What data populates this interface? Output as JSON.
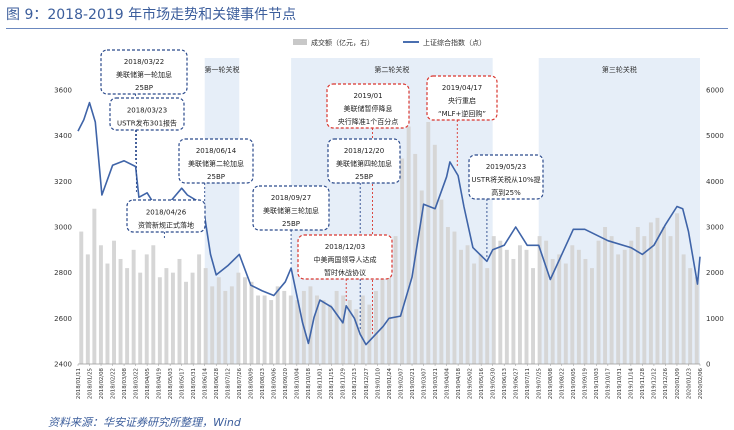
{
  "title": "图 9：2018-2019 年市场走势和关键事件节点",
  "source": "资料来源：华安证券研究所整理，Wind",
  "chart_data": {
    "type": "line",
    "legend": {
      "placement": "top-center",
      "items": [
        {
          "label": "成交额（亿元，右）",
          "kind": "bar",
          "color": "#c8c8c8"
        },
        {
          "label": "上证综合指数（点）",
          "kind": "line",
          "color": "#4a6fb0"
        }
      ]
    },
    "y_left": {
      "range": [
        2400,
        3600
      ],
      "ticks": [
        2400,
        2600,
        2800,
        3000,
        3200,
        3400,
        3600
      ]
    },
    "y_right": {
      "range": [
        0,
        6000
      ],
      "ticks": [
        0,
        1000,
        2000,
        3000,
        4000,
        5000,
        6000
      ]
    },
    "x": {
      "range": [
        "2018/01/11",
        "2020/02/06"
      ],
      "tick_labels": [
        "2018/01/11",
        "2018/01/25",
        "2018/02/08",
        "2018/02/22",
        "2018/03/08",
        "2018/03/22",
        "2018/04/05",
        "2018/04/19",
        "2018/05/03",
        "2018/05/17",
        "2018/05/31",
        "2018/06/14",
        "2018/06/28",
        "2018/07/12",
        "2018/07/26",
        "2018/08/09",
        "2018/08/23",
        "2018/09/06",
        "2018/09/20",
        "2018/10/04",
        "2018/10/18",
        "2018/11/01",
        "2018/11/15",
        "2018/11/29",
        "2018/12/13",
        "2018/12/27",
        "2019/01/10",
        "2019/01/24",
        "2019/02/07",
        "2019/02/21",
        "2019/03/07",
        "2019/03/21",
        "2019/04/04",
        "2019/04/18",
        "2019/05/02",
        "2019/05/16",
        "2019/05/30",
        "2019/06/13",
        "2019/06/27",
        "2019/07/11",
        "2019/07/25",
        "2019/08/08",
        "2019/08/22",
        "2019/09/05",
        "2019/09/19",
        "2019/10/03",
        "2019/10/17",
        "2019/10/31",
        "2019/11/14",
        "2019/11/28",
        "2019/12/12",
        "2019/12/26",
        "2020/01/09",
        "2020/01/23",
        "2020/02/06"
      ]
    },
    "bands": [
      {
        "label": "第一轮关税",
        "start": "2018/06/14",
        "end": "2018/07/26"
      },
      {
        "label": "第二轮关税",
        "start": "2018/09/27",
        "end": "2019/05/30"
      },
      {
        "label": "第三轮关税",
        "start": "2019/07/25",
        "end": "2020/02/06"
      }
    ],
    "index_series": {
      "name": "上证综合指数（点）",
      "points": [
        [
          "2018/01/11",
          3420
        ],
        [
          "2018/01/18",
          3470
        ],
        [
          "2018/01/25",
          3545
        ],
        [
          "2018/02/01",
          3460
        ],
        [
          "2018/02/09",
          3140
        ],
        [
          "2018/02/22",
          3270
        ],
        [
          "2018/03/08",
          3290
        ],
        [
          "2018/03/22",
          3265
        ],
        [
          "2018/03/26",
          3130
        ],
        [
          "2018/04/05",
          3150
        ],
        [
          "2018/04/19",
          3070
        ],
        [
          "2018/05/03",
          3110
        ],
        [
          "2018/05/17",
          3170
        ],
        [
          "2018/05/24",
          3140
        ],
        [
          "2018/06/07",
          3110
        ],
        [
          "2018/06/14",
          3045
        ],
        [
          "2018/06/21",
          2880
        ],
        [
          "2018/06/28",
          2790
        ],
        [
          "2018/07/12",
          2830
        ],
        [
          "2018/07/26",
          2880
        ],
        [
          "2018/08/09",
          2745
        ],
        [
          "2018/08/23",
          2720
        ],
        [
          "2018/09/06",
          2700
        ],
        [
          "2018/09/20",
          2760
        ],
        [
          "2018/09/27",
          2820
        ],
        [
          "2018/10/11",
          2580
        ],
        [
          "2018/10/18",
          2490
        ],
        [
          "2018/10/25",
          2605
        ],
        [
          "2018/11/01",
          2680
        ],
        [
          "2018/11/15",
          2650
        ],
        [
          "2018/11/29",
          2580
        ],
        [
          "2018/12/03",
          2655
        ],
        [
          "2018/12/13",
          2600
        ],
        [
          "2018/12/20",
          2530
        ],
        [
          "2018/12/27",
          2485
        ],
        [
          "2019/01/04",
          2515
        ],
        [
          "2019/01/17",
          2565
        ],
        [
          "2019/01/24",
          2600
        ],
        [
          "2019/02/07",
          2610
        ],
        [
          "2019/02/21",
          2780
        ],
        [
          "2019/03/07",
          3100
        ],
        [
          "2019/03/21",
          3080
        ],
        [
          "2019/04/04",
          3220
        ],
        [
          "2019/04/08",
          3285
        ],
        [
          "2019/04/18",
          3225
        ],
        [
          "2019/04/25",
          3090
        ],
        [
          "2019/05/06",
          2910
        ],
        [
          "2019/05/23",
          2850
        ],
        [
          "2019/05/30",
          2900
        ],
        [
          "2019/06/13",
          2920
        ],
        [
          "2019/06/27",
          3000
        ],
        [
          "2019/07/11",
          2920
        ],
        [
          "2019/07/25",
          2920
        ],
        [
          "2019/08/08",
          2770
        ],
        [
          "2019/08/22",
          2880
        ],
        [
          "2019/09/05",
          2990
        ],
        [
          "2019/09/19",
          2990
        ],
        [
          "2019/10/17",
          2940
        ],
        [
          "2019/11/14",
          2910
        ],
        [
          "2019/11/28",
          2880
        ],
        [
          "2019/12/12",
          2920
        ],
        [
          "2019/12/26",
          3010
        ],
        [
          "2020/01/09",
          3090
        ],
        [
          "2020/01/16",
          3080
        ],
        [
          "2020/01/23",
          2980
        ],
        [
          "2020/02/03",
          2750
        ],
        [
          "2020/02/06",
          2870
        ]
      ]
    },
    "turnover_series": {
      "name": "成交额（亿元，右）",
      "values": [
        2900,
        2400,
        3400,
        2600,
        2200,
        2700,
        2300,
        2100,
        2500,
        2000,
        2400,
        2600,
        1900,
        2100,
        2000,
        2300,
        1800,
        2000,
        2400,
        2100,
        1700,
        1900,
        1600,
        1700,
        2000,
        1900,
        1800,
        1500,
        1500,
        1400,
        1700,
        1600,
        1500,
        1400,
        1600,
        1700,
        1500,
        1400,
        1300,
        1600,
        1500,
        1400,
        1200,
        1500,
        1300,
        1600,
        1900,
        2300,
        2800,
        4500,
        5200,
        4600,
        3800,
        5300,
        4800,
        3600,
        3000,
        2900,
        2500,
        2600,
        2200,
        2400,
        2100,
        2800,
        2700,
        2500,
        2300,
        2600,
        2500,
        2100,
        2800,
        2700,
        2300,
        2400,
        2200,
        2600,
        2500,
        2300,
        2100,
        2700,
        3000,
        2800,
        2400,
        2500,
        2700,
        3000,
        2800,
        3100,
        3200,
        3000,
        2800,
        3300,
        2400,
        2100,
        1900
      ]
    },
    "annotations": [
      {
        "lines": [
          "2018/03/22",
          "美联储第一轮加息",
          "25BP"
        ],
        "border": "#2b4a8c",
        "date": "2018/03/22",
        "value": 3265
      },
      {
        "lines": [
          "2018/03/23",
          "USTR发布301报告"
        ],
        "border": "#2b4a8c",
        "date": "2018/03/23",
        "value": 3130
      },
      {
        "lines": [
          "2018/06/14",
          "美联储第二轮加息",
          "25BP"
        ],
        "border": "#2b4a8c",
        "date": "2018/06/14",
        "value": 3045
      },
      {
        "lines": [
          "2018/04/26",
          "资管新规正式落地"
        ],
        "border": "#2b4a8c",
        "date": "2018/04/26",
        "value": 3070
      },
      {
        "lines": [
          "2018/09/27",
          "美联储第三轮加息",
          "25BP"
        ],
        "border": "#2b4a8c",
        "date": "2018/09/27",
        "value": 2820
      },
      {
        "lines": [
          "2019/01",
          "美联储暂停降息",
          "央行降准1个百分点"
        ],
        "border": "#d9362f",
        "date": "2019/01/04",
        "value": 2515
      },
      {
        "lines": [
          "2018/12/20",
          "美联储第四轮加息",
          "25BP"
        ],
        "border": "#2b4a8c",
        "date": "2018/12/20",
        "value": 2530
      },
      {
        "lines": [
          "2018/12/03",
          "中美两国领导人达成",
          "暂时休战协议"
        ],
        "border": "#d9362f",
        "date": "2018/12/03",
        "value": 2655
      },
      {
        "lines": [
          "2019/04/17",
          "央行重启",
          "“MLF+逆回购”"
        ],
        "border": "#d9362f",
        "date": "2019/04/17",
        "value": 3250
      },
      {
        "lines": [
          "2019/05/23",
          "USTR将关税从10%提",
          "高到25%"
        ],
        "border": "#2b4a8c",
        "date": "2019/05/23",
        "value": 2850
      }
    ]
  }
}
